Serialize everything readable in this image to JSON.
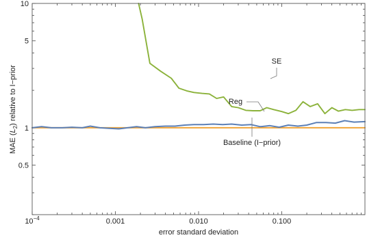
{
  "chart_data": {
    "type": "line",
    "title": "",
    "xlabel": "error standard deviation",
    "ylabel_pre": "MAE (",
    "ylabel_italic": "L",
    "ylabel_sub": "2",
    "ylabel_post": ") relative to I−prior",
    "xscale": "log",
    "yscale": "log",
    "xlim": [
      0.0001,
      1.0
    ],
    "ylim": [
      0.2,
      10
    ],
    "x_ticks": [
      {
        "value": 0.0001,
        "base": "10",
        "exp": "−4"
      },
      {
        "value": 0.001,
        "label": "0.001"
      },
      {
        "value": 0.01,
        "label": "0.010"
      },
      {
        "value": 0.1,
        "label": "0.100"
      }
    ],
    "y_ticks": [
      {
        "value": 10,
        "label": "10"
      },
      {
        "value": 5,
        "label": "5"
      },
      {
        "value": 1,
        "label": "1"
      },
      {
        "value": 0.5,
        "label": "0.5"
      }
    ],
    "series": [
      {
        "name": "SE",
        "color": "#8bb23a",
        "x": [
          0.0019,
          0.0021,
          0.0026,
          0.0035,
          0.0047,
          0.0058,
          0.0072,
          0.0088,
          0.011,
          0.0135,
          0.0165,
          0.02,
          0.025,
          0.03,
          0.037,
          0.045,
          0.055,
          0.066,
          0.08,
          0.1,
          0.12,
          0.148,
          0.18,
          0.22,
          0.27,
          0.33,
          0.4,
          0.48,
          0.58,
          0.7,
          0.85,
          1.0
        ],
        "values": [
          10.0,
          7.5,
          3.3,
          2.85,
          2.5,
          2.08,
          1.98,
          1.92,
          1.89,
          1.87,
          1.72,
          1.77,
          1.48,
          1.45,
          1.38,
          1.37,
          1.37,
          1.45,
          1.4,
          1.35,
          1.3,
          1.38,
          1.62,
          1.48,
          1.56,
          1.3,
          1.45,
          1.36,
          1.4,
          1.38,
          1.4,
          1.4
        ]
      },
      {
        "name": "Reg",
        "color": "#5b7fb6",
        "x": [
          0.0001,
          0.00013,
          0.00017,
          0.00023,
          0.0003,
          0.0004,
          0.0005,
          0.00065,
          0.00085,
          0.0011,
          0.0014,
          0.0018,
          0.0023,
          0.003,
          0.004,
          0.0052,
          0.0068,
          0.0088,
          0.0115,
          0.015,
          0.0195,
          0.025,
          0.033,
          0.043,
          0.055,
          0.072,
          0.093,
          0.12,
          0.156,
          0.2,
          0.26,
          0.34,
          0.44,
          0.57,
          0.74,
          1.0
        ],
        "values": [
          1.0,
          1.02,
          1.0,
          1.0,
          1.01,
          1.0,
          1.03,
          1.0,
          0.99,
          0.98,
          1.0,
          1.02,
          1.0,
          1.02,
          1.03,
          1.03,
          1.05,
          1.06,
          1.06,
          1.07,
          1.06,
          1.07,
          1.05,
          1.06,
          1.02,
          1.04,
          1.01,
          1.05,
          1.03,
          1.05,
          1.1,
          1.1,
          1.09,
          1.14,
          1.11,
          1.12
        ]
      },
      {
        "name": "Baseline (I−prior)",
        "color": "#f0a53a",
        "x": [
          0.0001,
          1.0
        ],
        "values": [
          1.0,
          1.0
        ]
      }
    ],
    "annotations": [
      {
        "text": "SE"
      },
      {
        "text": "Reg"
      },
      {
        "text": "Baseline (I−prior)"
      }
    ]
  }
}
